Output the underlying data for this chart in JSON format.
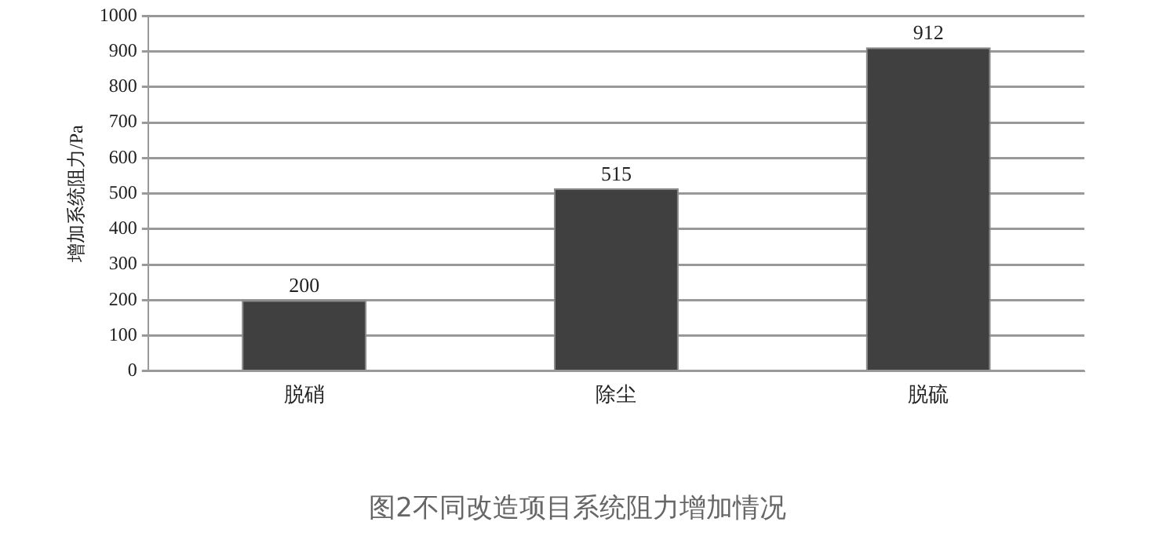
{
  "chart_data": {
    "type": "bar",
    "title": "图2不同改造项目系统阻力增加情况",
    "ylabel": "增加系统阻力/Pa",
    "categories": [
      "脱硝",
      "除尘",
      "脱硫"
    ],
    "values": [
      200,
      515,
      912
    ],
    "color": "#404040",
    "ylim": [
      0,
      1000
    ],
    "yticks": [
      0,
      100,
      200,
      300,
      400,
      500,
      600,
      700,
      800,
      900,
      1000
    ],
    "grid": "y",
    "data_labels": true,
    "legend": false
  }
}
